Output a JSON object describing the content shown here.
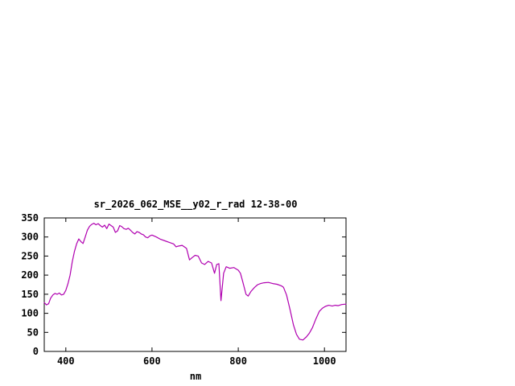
{
  "chart_data": {
    "type": "line",
    "title": "sr_2026_062_MSE__y02_r_rad 12-38-00",
    "xlabel": "nm",
    "ylabel": "",
    "xlim": [
      350,
      1050
    ],
    "ylim": [
      0,
      350
    ],
    "xticks": [
      400,
      600,
      800,
      1000
    ],
    "yticks": [
      0,
      50,
      100,
      150,
      200,
      250,
      300,
      350
    ],
    "grid": false,
    "legend_position": "none",
    "line_color": "#b000b0",
    "frame_color": "#000000",
    "background_color": "#ffffff",
    "series": [
      {
        "name": "sr_2026_062_MSE__y02_r_rad",
        "points": [
          [
            350,
            128
          ],
          [
            355,
            122
          ],
          [
            360,
            125
          ],
          [
            365,
            140
          ],
          [
            370,
            148
          ],
          [
            375,
            152
          ],
          [
            380,
            150
          ],
          [
            385,
            153
          ],
          [
            390,
            148
          ],
          [
            395,
            150
          ],
          [
            400,
            160
          ],
          [
            405,
            178
          ],
          [
            410,
            200
          ],
          [
            415,
            235
          ],
          [
            420,
            262
          ],
          [
            425,
            282
          ],
          [
            430,
            295
          ],
          [
            435,
            288
          ],
          [
            440,
            283
          ],
          [
            445,
            300
          ],
          [
            450,
            318
          ],
          [
            455,
            328
          ],
          [
            460,
            333
          ],
          [
            465,
            336
          ],
          [
            470,
            332
          ],
          [
            475,
            335
          ],
          [
            480,
            330
          ],
          [
            485,
            326
          ],
          [
            490,
            331
          ],
          [
            495,
            322
          ],
          [
            500,
            334
          ],
          [
            505,
            330
          ],
          [
            510,
            326
          ],
          [
            515,
            312
          ],
          [
            520,
            316
          ],
          [
            525,
            330
          ],
          [
            530,
            327
          ],
          [
            535,
            322
          ],
          [
            540,
            320
          ],
          [
            545,
            323
          ],
          [
            550,
            318
          ],
          [
            555,
            312
          ],
          [
            560,
            308
          ],
          [
            565,
            314
          ],
          [
            570,
            312
          ],
          [
            575,
            308
          ],
          [
            580,
            306
          ],
          [
            585,
            300
          ],
          [
            590,
            298
          ],
          [
            595,
            303
          ],
          [
            600,
            305
          ],
          [
            610,
            300
          ],
          [
            620,
            294
          ],
          [
            630,
            290
          ],
          [
            640,
            286
          ],
          [
            650,
            282
          ],
          [
            656,
            274
          ],
          [
            660,
            276
          ],
          [
            670,
            278
          ],
          [
            680,
            270
          ],
          [
            687,
            240
          ],
          [
            693,
            246
          ],
          [
            700,
            252
          ],
          [
            707,
            250
          ],
          [
            715,
            232
          ],
          [
            722,
            228
          ],
          [
            730,
            236
          ],
          [
            738,
            232
          ],
          [
            745,
            205
          ],
          [
            750,
            228
          ],
          [
            755,
            230
          ],
          [
            760,
            133
          ],
          [
            766,
            205
          ],
          [
            772,
            222
          ],
          [
            780,
            218
          ],
          [
            790,
            220
          ],
          [
            800,
            213
          ],
          [
            805,
            205
          ],
          [
            810,
            185
          ],
          [
            818,
            150
          ],
          [
            823,
            145
          ],
          [
            830,
            158
          ],
          [
            838,
            168
          ],
          [
            845,
            175
          ],
          [
            852,
            178
          ],
          [
            860,
            180
          ],
          [
            870,
            181
          ],
          [
            880,
            178
          ],
          [
            890,
            176
          ],
          [
            900,
            172
          ],
          [
            905,
            168
          ],
          [
            912,
            148
          ],
          [
            920,
            110
          ],
          [
            928,
            70
          ],
          [
            935,
            45
          ],
          [
            942,
            32
          ],
          [
            950,
            30
          ],
          [
            958,
            38
          ],
          [
            965,
            48
          ],
          [
            972,
            62
          ],
          [
            980,
            85
          ],
          [
            988,
            105
          ],
          [
            995,
            113
          ],
          [
            1002,
            118
          ],
          [
            1010,
            121
          ],
          [
            1018,
            119
          ],
          [
            1025,
            121
          ],
          [
            1032,
            120
          ],
          [
            1040,
            123
          ],
          [
            1050,
            124
          ]
        ]
      }
    ]
  }
}
